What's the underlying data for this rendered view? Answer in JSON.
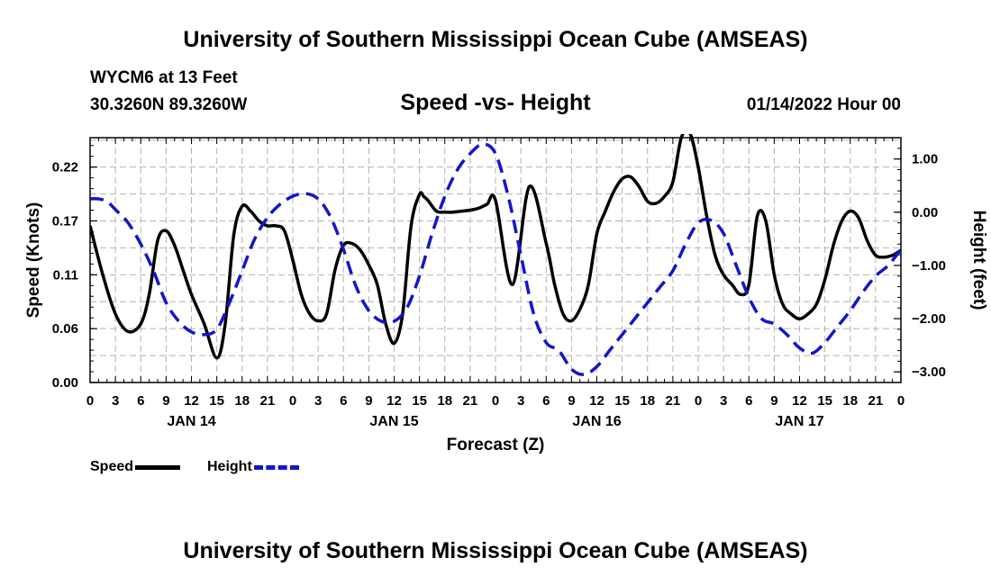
{
  "header": {
    "title": "University of Southern Mississippi Ocean Cube (AMSEAS)",
    "station": "WYCM6 at 13 Feet",
    "coords": "30.3260N  89.3260W",
    "subtitle": "Speed -vs- Height",
    "datetime": "01/14/2022 Hour 00"
  },
  "footer": {
    "title": "University of Southern Mississippi Ocean Cube (AMSEAS)"
  },
  "legend": {
    "speed_label": "Speed",
    "height_label": "Height"
  },
  "colors": {
    "speed": "#000000",
    "height": "#1515c8",
    "grid": "#b4b4b4"
  },
  "chart_data": {
    "type": "line",
    "title": "Speed -vs- Height",
    "xlabel": "Forecast (Z)",
    "ylabel": "Speed (Knots)",
    "y2label": "Height (feet)",
    "xlim": [
      0,
      96
    ],
    "ylim": [
      0.0,
      0.25
    ],
    "y2lim": [
      -3.2,
      1.4
    ],
    "x_ticks": [
      0,
      3,
      6,
      9,
      12,
      15,
      18,
      21,
      24,
      27,
      30,
      33,
      36,
      39,
      42,
      45,
      48,
      51,
      54,
      57,
      60,
      63,
      66,
      69,
      72,
      75,
      78,
      81,
      84,
      87,
      90,
      93,
      96
    ],
    "x_tick_labels": [
      "0",
      "3",
      "6",
      "9",
      "12",
      "15",
      "18",
      "21",
      "0",
      "3",
      "6",
      "9",
      "12",
      "15",
      "18",
      "21",
      "0",
      "3",
      "6",
      "9",
      "12",
      "15",
      "18",
      "21",
      "0",
      "3",
      "6",
      "9",
      "12",
      "15",
      "18",
      "21",
      "0"
    ],
    "date_labels": [
      {
        "at": 12,
        "label": "JAN 14"
      },
      {
        "at": 36,
        "label": "JAN 15"
      },
      {
        "at": 60,
        "label": "JAN 16"
      },
      {
        "at": 84,
        "label": "JAN 17"
      }
    ],
    "y_ticks": [
      0.0,
      0.055,
      0.11,
      0.165,
      0.22
    ],
    "y_tick_labels": [
      "0.00",
      "0.06",
      "0.11",
      "0.17",
      "0.22"
    ],
    "y2_ticks": [
      -3,
      -2,
      -1,
      0,
      1
    ],
    "y2_tick_labels": [
      "−3.00",
      "−2.00",
      "−1.00",
      "0.00",
      "1.00"
    ],
    "grid": true,
    "series": [
      {
        "name": "Speed",
        "axis": "left",
        "style": "solid",
        "x": [
          0,
          1.5,
          3,
          4.5,
          6,
          7,
          8,
          9,
          10,
          11,
          12,
          13.5,
          15,
          16,
          17,
          18,
          19,
          20,
          21,
          22,
          23,
          24,
          25,
          26,
          27,
          28,
          29,
          30,
          31,
          32,
          33,
          34,
          35,
          36,
          37,
          38,
          39,
          39.5,
          40,
          41,
          42,
          43,
          44,
          45,
          46,
          47,
          48,
          50,
          52,
          54,
          55,
          56,
          57,
          58,
          59,
          60,
          61,
          62,
          63,
          64,
          65,
          66,
          67,
          68,
          69,
          70,
          71,
          72,
          73,
          74,
          75,
          76,
          77,
          78,
          79,
          80,
          81,
          82,
          83,
          84,
          85,
          86,
          87,
          88,
          89,
          90,
          91,
          92,
          93,
          94,
          95,
          96
        ],
        "y": [
          0.16,
          0.11,
          0.07,
          0.052,
          0.06,
          0.09,
          0.145,
          0.155,
          0.14,
          0.115,
          0.09,
          0.06,
          0.025,
          0.06,
          0.15,
          0.18,
          0.175,
          0.165,
          0.16,
          0.16,
          0.155,
          0.125,
          0.09,
          0.07,
          0.063,
          0.07,
          0.115,
          0.14,
          0.142,
          0.135,
          0.12,
          0.1,
          0.06,
          0.04,
          0.07,
          0.16,
          0.192,
          0.19,
          0.186,
          0.175,
          0.174,
          0.174,
          0.175,
          0.176,
          0.178,
          0.182,
          0.186,
          0.1,
          0.2,
          0.142,
          0.1,
          0.07,
          0.063,
          0.075,
          0.1,
          0.152,
          0.175,
          0.195,
          0.208,
          0.21,
          0.2,
          0.185,
          0.183,
          0.19,
          0.205,
          0.25,
          0.255,
          0.22,
          0.17,
          0.13,
          0.11,
          0.1,
          0.09,
          0.1,
          0.17,
          0.165,
          0.11,
          0.08,
          0.07,
          0.065,
          0.07,
          0.08,
          0.105,
          0.14,
          0.165,
          0.175,
          0.168,
          0.145,
          0.13,
          0.128,
          0.13,
          0.135
        ]
      },
      {
        "name": "Height",
        "axis": "right",
        "style": "dashed",
        "x": [
          0,
          1,
          2,
          3,
          4.5,
          6,
          7.5,
          9,
          10.5,
          12,
          13.5,
          15,
          16.5,
          18,
          19.5,
          21,
          22.5,
          24,
          25.5,
          27,
          28.5,
          30,
          31.5,
          33,
          34.5,
          36,
          37.5,
          39,
          40.5,
          42,
          43.5,
          45,
          46.5,
          48,
          49.5,
          51,
          52.5,
          54,
          55.5,
          57,
          58.5,
          60,
          61.5,
          63,
          64.5,
          66,
          67.5,
          69,
          70.5,
          72,
          73.5,
          75,
          76.5,
          78,
          79.5,
          81,
          82.5,
          84,
          85.5,
          87,
          88.5,
          90,
          91.5,
          93,
          94.5,
          96
        ],
        "y": [
          0.25,
          0.25,
          0.2,
          0.05,
          -0.2,
          -0.6,
          -1.1,
          -1.7,
          -2.05,
          -2.25,
          -2.3,
          -2.2,
          -1.7,
          -1.1,
          -0.5,
          -0.1,
          0.15,
          0.3,
          0.35,
          0.25,
          -0.1,
          -0.7,
          -1.4,
          -1.85,
          -2.05,
          -2.05,
          -1.8,
          -1.2,
          -0.4,
          0.3,
          0.8,
          1.1,
          1.28,
          1.1,
          0.3,
          -0.8,
          -1.9,
          -2.45,
          -2.6,
          -2.95,
          -3.05,
          -2.9,
          -2.6,
          -2.3,
          -2.0,
          -1.7,
          -1.4,
          -1.1,
          -0.6,
          -0.2,
          -0.15,
          -0.4,
          -1.0,
          -1.6,
          -2.0,
          -2.1,
          -2.3,
          -2.55,
          -2.65,
          -2.45,
          -2.15,
          -1.85,
          -1.5,
          -1.2,
          -1.0,
          -0.7
        ]
      }
    ]
  }
}
